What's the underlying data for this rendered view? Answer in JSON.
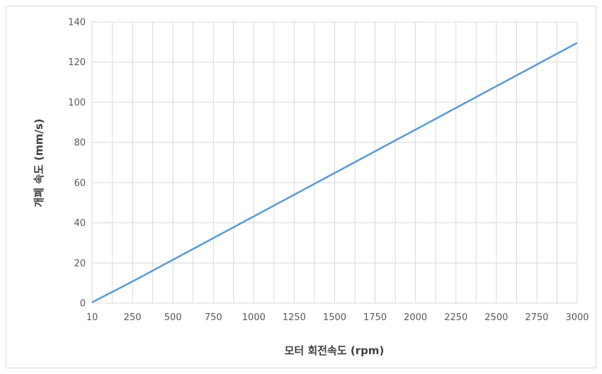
{
  "chart_data": {
    "type": "line",
    "title": "",
    "xlabel": "모터 회전속도 (rpm)",
    "ylabel": "개폐 속도 (mm/s)",
    "categories": [
      "10",
      "250",
      "500",
      "750",
      "1000",
      "1250",
      "1500",
      "1750",
      "2000",
      "2250",
      "2500",
      "2750",
      "3000"
    ],
    "series": [
      {
        "values": [
          0.4,
          10.8,
          21.6,
          32.4,
          43.2,
          54.0,
          64.8,
          75.6,
          86.4,
          97.2,
          108.0,
          118.8,
          129.6
        ],
        "color": "#5b9bd5"
      }
    ],
    "yticks": [
      "0",
      "20",
      "40",
      "60",
      "80",
      "100",
      "120",
      "140"
    ],
    "ylim": [
      0,
      140
    ],
    "grid": true,
    "legend": "none"
  }
}
